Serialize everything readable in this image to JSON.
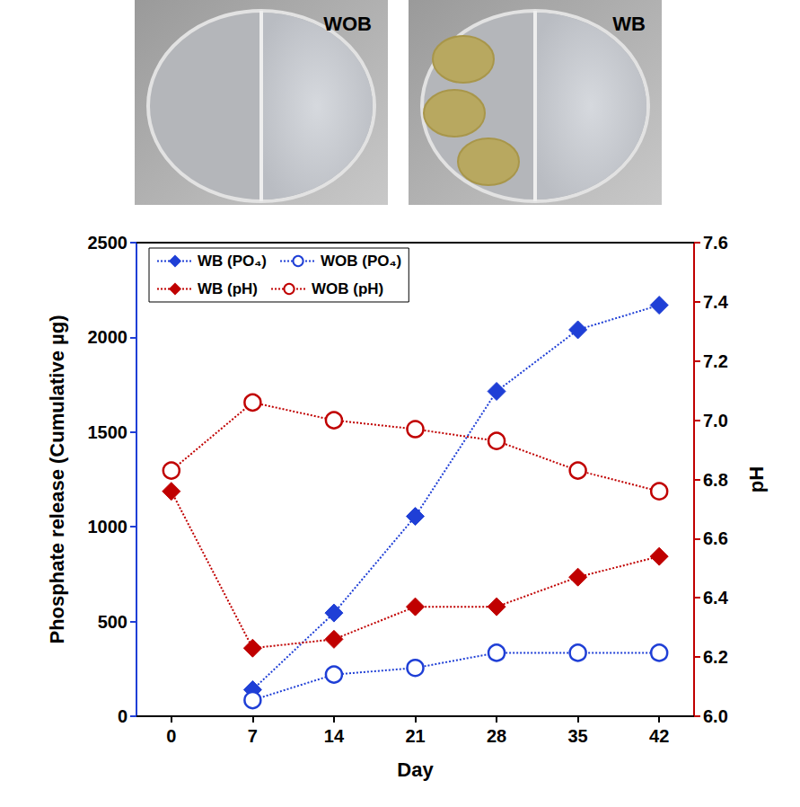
{
  "photos": [
    {
      "label": "WOB"
    },
    {
      "label": "WB"
    }
  ],
  "chart_data": {
    "type": "line",
    "xlabel": "Day",
    "ylabel": "Phosphate release (Cumulative µg)",
    "y2label": "pH",
    "x": [
      0,
      7,
      14,
      21,
      28,
      35,
      42
    ],
    "xlim": [
      -3,
      45
    ],
    "xticks": [
      0,
      7,
      14,
      21,
      28,
      35,
      42
    ],
    "ylim": [
      0,
      2500
    ],
    "yticks": [
      0,
      500,
      1000,
      1500,
      2000,
      2500
    ],
    "y2lim": [
      6.0,
      7.6
    ],
    "y2ticks": [
      {
        "value": 6,
        "label": "6.0"
      },
      6.2,
      6.4,
      6.6,
      6.8,
      {
        "value": 7,
        "label": "7.0"
      },
      7.2,
      7.4,
      7.6
    ],
    "legend": "upper left",
    "grid": false,
    "series": [
      {
        "name": "WB (PO₄)",
        "color": "#1f3fd6",
        "marker": "diamond",
        "line_style": "dotted",
        "values": [
          null,
          140,
          545,
          1055,
          1715,
          2040,
          2170
        ]
      },
      {
        "name": "WOB (PO₄)",
        "color": "#1f3fd6",
        "marker": "circle_open",
        "line_style": "dotted",
        "values": [
          null,
          85,
          220,
          255,
          335,
          335,
          335
        ]
      },
      {
        "name": "WB (pH)",
        "color": "#c00000",
        "marker": "diamond",
        "line_style": "dotted",
        "axis": "y2",
        "values": [
          6.76,
          6.23,
          6.26,
          6.37,
          6.37,
          6.47,
          6.54
        ]
      },
      {
        "name": "WOB (pH)",
        "color": "#c00000",
        "marker": "circle_open",
        "line_style": "dotted",
        "axis": "y2",
        "values": [
          6.83,
          7.06,
          7.0,
          6.97,
          6.93,
          6.83,
          6.76
        ]
      }
    ]
  }
}
